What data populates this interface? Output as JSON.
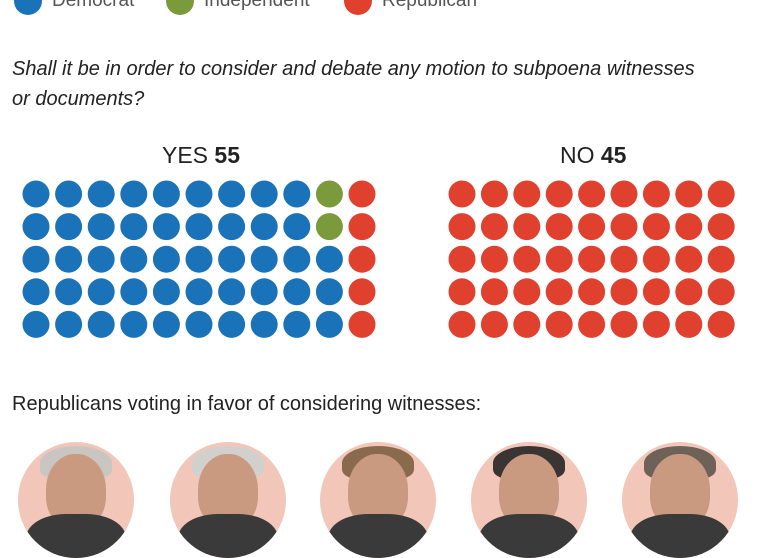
{
  "legend": {
    "items": [
      {
        "label": "Democrat",
        "color": "#1a73b8"
      },
      {
        "label": "Independent",
        "color": "#7a9a3c"
      },
      {
        "label": "Republican",
        "color": "#e0412e"
      }
    ]
  },
  "question": "Shall it be in order to consider and debate any motion to subpoena witnesses or documents?",
  "yes": {
    "label": "YES",
    "count": "55"
  },
  "no": {
    "label": "NO",
    "count": "45"
  },
  "subheading": "Republicans voting in favor of considering witnesses:",
  "chart_data": {
    "type": "dot-matrix",
    "title": "Shall it be in order to consider and debate any motion to subpoena witnesses or documents?",
    "series": [
      {
        "name": "YES",
        "total": 55,
        "breakdown": {
          "Democrat": 48,
          "Independent": 2,
          "Republican": 5
        }
      },
      {
        "name": "NO",
        "total": 45,
        "breakdown": {
          "Democrat": 0,
          "Independent": 0,
          "Republican": 45
        }
      }
    ],
    "colors": {
      "Democrat": "#1a73b8",
      "Independent": "#7a9a3c",
      "Republican": "#e0412e"
    }
  },
  "portraits": [
    {
      "name": "portrait-1",
      "hair": "#c9c6c2"
    },
    {
      "name": "portrait-2",
      "hair": "#d2d0cc"
    },
    {
      "name": "portrait-3",
      "hair": "#8a6a4c"
    },
    {
      "name": "portrait-4",
      "hair": "#3a3432"
    },
    {
      "name": "portrait-5",
      "hair": "#6e6258"
    }
  ]
}
